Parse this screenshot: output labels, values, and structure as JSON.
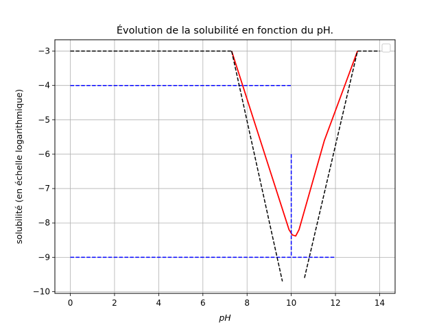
{
  "chart_data": {
    "type": "line",
    "title": "Évolution de la solubilité en fonction du pH.",
    "xlabel": "pH",
    "ylabel": "solubilité (en échelle logarithmique)",
    "xlim": [
      -0.7,
      14.7
    ],
    "ylim": [
      -10.05,
      -2.67
    ],
    "xticks": [
      0,
      2,
      4,
      6,
      8,
      10,
      12,
      14
    ],
    "yticks": [
      -3,
      -4,
      -5,
      -6,
      -7,
      -8,
      -9,
      -10
    ],
    "xtick_labels": [
      "0",
      "2",
      "4",
      "6",
      "8",
      "10",
      "12",
      "14"
    ],
    "ytick_labels": [
      "−3",
      "−4",
      "−5",
      "−6",
      "−7",
      "−8",
      "−9",
      "−10"
    ],
    "grid": true,
    "legend": {
      "position": "top-right",
      "entries": []
    },
    "series": [
      {
        "name": "plateau-left",
        "color": "#000000",
        "style": "dashed",
        "points": [
          [
            0,
            -3
          ],
          [
            7.3,
            -3
          ]
        ]
      },
      {
        "name": "descending-branch",
        "color": "#000000",
        "style": "dashed",
        "points": [
          [
            7.3,
            -3
          ],
          [
            9.6,
            -9.7
          ]
        ]
      },
      {
        "name": "ascending-branch",
        "color": "#000000",
        "style": "dashed",
        "points": [
          [
            10.6,
            -9.6
          ],
          [
            13.0,
            -3
          ]
        ]
      },
      {
        "name": "plateau-right",
        "color": "#000000",
        "style": "dashed",
        "points": [
          [
            13.0,
            -3
          ],
          [
            14.0,
            -3
          ]
        ]
      },
      {
        "name": "solubility-curve",
        "color": "#ff0000",
        "style": "solid",
        "points": [
          [
            7.3,
            -3
          ],
          [
            9.0,
            -6.4
          ],
          [
            9.9,
            -8.2
          ],
          [
            10.05,
            -8.35
          ],
          [
            10.2,
            -8.38
          ],
          [
            10.35,
            -8.2
          ],
          [
            11.5,
            -5.6
          ],
          [
            13.0,
            -3
          ]
        ]
      },
      {
        "name": "blue-h-upper",
        "color": "#0000ff",
        "style": "dashed",
        "points": [
          [
            0,
            -4
          ],
          [
            10,
            -4
          ]
        ]
      },
      {
        "name": "blue-h-lower",
        "color": "#0000ff",
        "style": "dashed",
        "points": [
          [
            0,
            -9
          ],
          [
            12,
            -9
          ]
        ]
      },
      {
        "name": "blue-vertical",
        "color": "#0000ff",
        "style": "dashed",
        "points": [
          [
            10,
            -6
          ],
          [
            10,
            -9
          ]
        ]
      }
    ]
  }
}
